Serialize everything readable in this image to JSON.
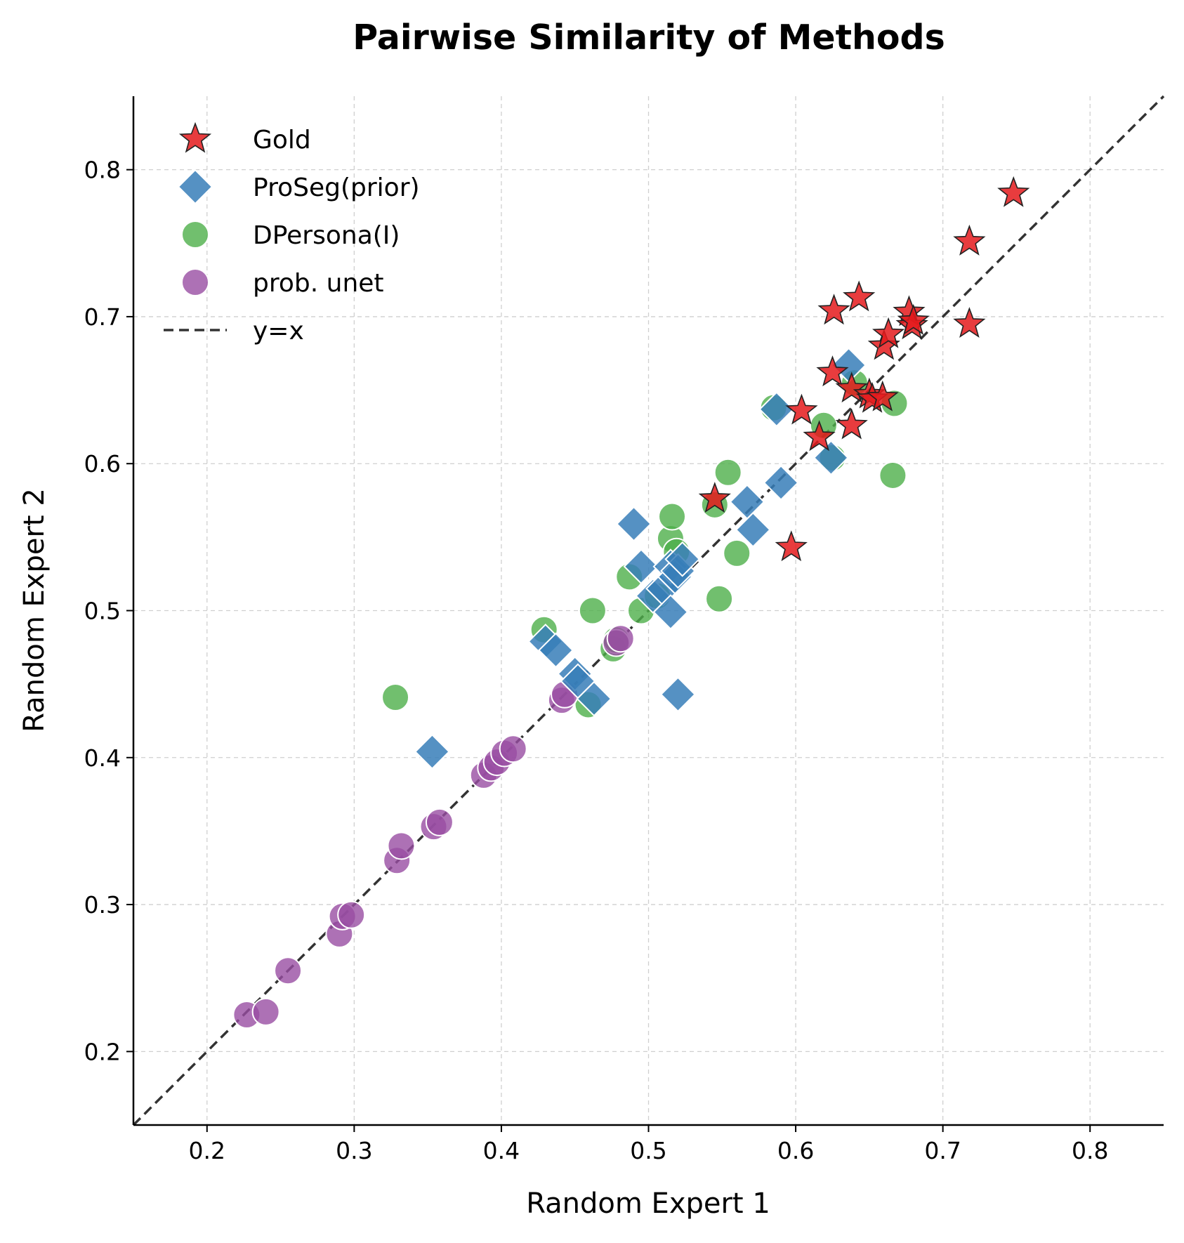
{
  "chart_data": {
    "type": "scatter",
    "title": "Pairwise Similarity of Methods",
    "xlabel": "Random Expert 1",
    "ylabel": "Random Expert 2",
    "xlim": [
      0.15,
      0.85
    ],
    "ylim": [
      0.15,
      0.85
    ],
    "xticks": [
      "0.2",
      "0.3",
      "0.4",
      "0.5",
      "0.6",
      "0.7",
      "0.8"
    ],
    "yticks": [
      "0.2",
      "0.3",
      "0.4",
      "0.5",
      "0.6",
      "0.7",
      "0.8"
    ],
    "grid": true,
    "legend_position": "top-left",
    "reference_line": {
      "label": "y=x",
      "style": "dashed",
      "color": "#333333"
    },
    "series": [
      {
        "name": "DPersona(I)",
        "marker": "circle",
        "color": "#4daf4a",
        "points": [
          [
            0.328,
            0.441
          ],
          [
            0.429,
            0.487
          ],
          [
            0.459,
            0.436
          ],
          [
            0.462,
            0.5
          ],
          [
            0.476,
            0.474
          ],
          [
            0.478,
            0.48
          ],
          [
            0.487,
            0.523
          ],
          [
            0.495,
            0.5
          ],
          [
            0.506,
            0.51
          ],
          [
            0.515,
            0.549
          ],
          [
            0.516,
            0.564
          ],
          [
            0.519,
            0.54
          ],
          [
            0.545,
            0.572
          ],
          [
            0.548,
            0.508
          ],
          [
            0.554,
            0.594
          ],
          [
            0.56,
            0.539
          ],
          [
            0.585,
            0.638
          ],
          [
            0.619,
            0.626
          ],
          [
            0.625,
            0.604
          ],
          [
            0.666,
            0.592
          ],
          [
            0.667,
            0.641
          ],
          [
            0.64,
            0.655
          ]
        ]
      },
      {
        "name": "prob. unet",
        "marker": "circle",
        "color": "#984ea3",
        "points": [
          [
            0.227,
            0.225
          ],
          [
            0.24,
            0.227
          ],
          [
            0.255,
            0.255
          ],
          [
            0.29,
            0.28
          ],
          [
            0.292,
            0.292
          ],
          [
            0.298,
            0.293
          ],
          [
            0.329,
            0.33
          ],
          [
            0.332,
            0.34
          ],
          [
            0.354,
            0.353
          ],
          [
            0.358,
            0.356
          ],
          [
            0.388,
            0.388
          ],
          [
            0.393,
            0.393
          ],
          [
            0.397,
            0.397
          ],
          [
            0.402,
            0.403
          ],
          [
            0.408,
            0.406
          ],
          [
            0.441,
            0.439
          ],
          [
            0.443,
            0.443
          ],
          [
            0.478,
            0.478
          ],
          [
            0.481,
            0.481
          ]
        ]
      },
      {
        "name": "ProSeg(prior)",
        "marker": "diamond",
        "color": "#377eb8",
        "points": [
          [
            0.353,
            0.404
          ],
          [
            0.43,
            0.479
          ],
          [
            0.437,
            0.473
          ],
          [
            0.45,
            0.457
          ],
          [
            0.452,
            0.452
          ],
          [
            0.463,
            0.44
          ],
          [
            0.49,
            0.559
          ],
          [
            0.495,
            0.53
          ],
          [
            0.503,
            0.51
          ],
          [
            0.51,
            0.515
          ],
          [
            0.515,
            0.53
          ],
          [
            0.515,
            0.499
          ],
          [
            0.518,
            0.523
          ],
          [
            0.52,
            0.527
          ],
          [
            0.52,
            0.443
          ],
          [
            0.523,
            0.535
          ],
          [
            0.567,
            0.574
          ],
          [
            0.571,
            0.555
          ],
          [
            0.59,
            0.587
          ],
          [
            0.587,
            0.637
          ],
          [
            0.624,
            0.604
          ],
          [
            0.636,
            0.667
          ]
        ]
      },
      {
        "name": "Gold",
        "marker": "star",
        "color": "#e41a1c",
        "points": [
          [
            0.545,
            0.576
          ],
          [
            0.597,
            0.543
          ],
          [
            0.604,
            0.636
          ],
          [
            0.616,
            0.618
          ],
          [
            0.625,
            0.662
          ],
          [
            0.626,
            0.704
          ],
          [
            0.638,
            0.626
          ],
          [
            0.638,
            0.651
          ],
          [
            0.643,
            0.713
          ],
          [
            0.65,
            0.647
          ],
          [
            0.652,
            0.644
          ],
          [
            0.659,
            0.645
          ],
          [
            0.66,
            0.68
          ],
          [
            0.663,
            0.688
          ],
          [
            0.677,
            0.703
          ],
          [
            0.679,
            0.694
          ],
          [
            0.68,
            0.697
          ],
          [
            0.718,
            0.695
          ],
          [
            0.718,
            0.751
          ],
          [
            0.748,
            0.784
          ]
        ]
      }
    ],
    "legend_order": [
      "Gold",
      "ProSeg(prior)",
      "DPersona(I)",
      "prob. unet",
      "y=x"
    ]
  }
}
